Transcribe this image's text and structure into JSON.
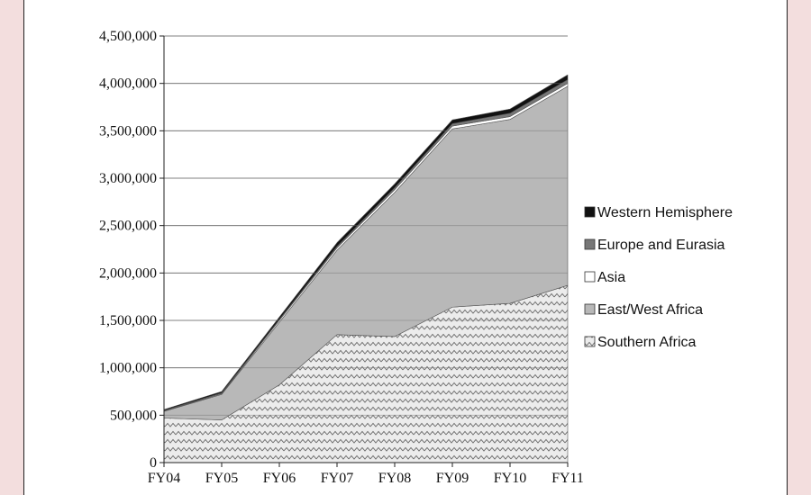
{
  "chart_data": {
    "type": "area",
    "stacked": true,
    "categories": [
      "FY04",
      "FY05",
      "FY06",
      "FY07",
      "FY08",
      "FY09",
      "FY10",
      "FY11"
    ],
    "ylim": [
      0,
      4500000
    ],
    "y_ticks": [
      0,
      500000,
      1000000,
      1500000,
      2000000,
      2500000,
      3000000,
      3500000,
      4000000,
      4500000
    ],
    "y_tick_labels": [
      "0",
      "500,000",
      "1,000,000",
      "1,500,000",
      "2,000,000",
      "2,500,000",
      "3,000,000",
      "3,500,000",
      "4,000,000",
      "4,500,000"
    ],
    "grid": true,
    "legend_position": "right",
    "series": [
      {
        "name": "Southern Africa",
        "values": [
          470000,
          450000,
          820000,
          1350000,
          1330000,
          1640000,
          1680000,
          1870000
        ],
        "color": "#e6e6e6",
        "pattern": "zigzag"
      },
      {
        "name": "East/West Africa",
        "values": [
          70000,
          270000,
          660000,
          890000,
          1520000,
          1880000,
          1940000,
          2100000
        ],
        "color": "#b8b8b8"
      },
      {
        "name": "Asia",
        "values": [
          5000,
          8000,
          20000,
          25000,
          30000,
          30000,
          30000,
          30000
        ],
        "color": "#ffffff"
      },
      {
        "name": "Europe and Eurasia",
        "values": [
          5000,
          7000,
          10000,
          15000,
          20000,
          25000,
          35000,
          40000
        ],
        "color": "#777777"
      },
      {
        "name": "Western Hemisphere",
        "values": [
          10000,
          15000,
          25000,
          40000,
          40000,
          40000,
          45000,
          50000
        ],
        "color": "#111111"
      }
    ]
  }
}
